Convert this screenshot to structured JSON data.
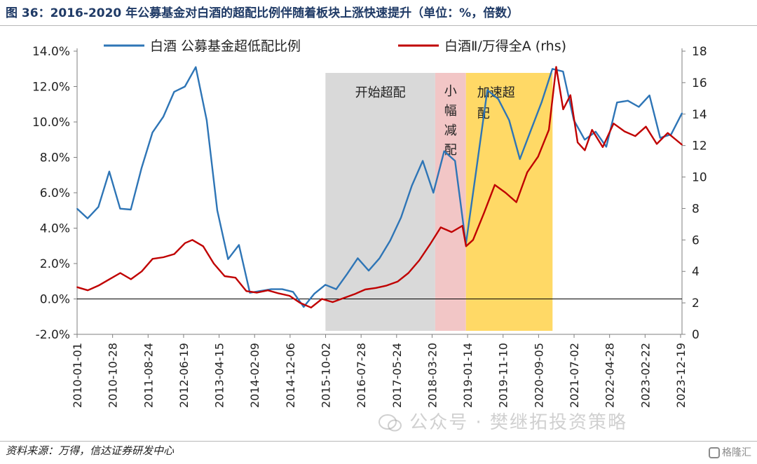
{
  "header": {
    "title": "图 36：2016-2020 年公募基金对白酒的超配比例伴随着板块上涨快速提升（单位：%，倍数）"
  },
  "footer": {
    "source": "资料来源：万得，信达证券研发中心",
    "watermark": "公众号 · 樊继拓投资策略",
    "logo": "格隆汇"
  },
  "chart_data": {
    "type": "line",
    "legend_placement": "top",
    "grid": false,
    "x_tick_labels": [
      "2010-01-01",
      "2010-10-28",
      "2011-08-24",
      "2012-06-19",
      "2013-04-15",
      "2014-02-09",
      "2014-12-06",
      "2015-10-02",
      "2016-07-28",
      "2017-05-24",
      "2018-03-20",
      "2019-01-14",
      "2019-11-10",
      "2020-09-05",
      "2021-07-02",
      "2022-04-28",
      "2023-02-22",
      "2023-12-19"
    ],
    "xlim": [
      "2010-01-01",
      "2023-12-31"
    ],
    "y_left": {
      "ticks": [
        "-2.0%",
        "0.0%",
        "2.0%",
        "4.0%",
        "6.0%",
        "8.0%",
        "10.0%",
        "12.0%",
        "14.0%"
      ],
      "range": [
        -2,
        14
      ]
    },
    "y_right": {
      "ticks": [
        "0",
        "2",
        "4",
        "6",
        "8",
        "10",
        "12",
        "14",
        "16",
        "18"
      ],
      "range": [
        0,
        18
      ]
    },
    "shaded_regions": [
      {
        "label": "开始超配",
        "start": "2015-10-01",
        "end": "2018-04-15",
        "color": "#d9d9d9"
      },
      {
        "label": "小幅减配",
        "start": "2018-04-15",
        "end": "2018-12-31",
        "color": "#f2c6c6"
      },
      {
        "label": "加速超配",
        "start": "2018-12-31",
        "end": "2021-01-01",
        "color": "#ffd966"
      }
    ],
    "series": [
      {
        "name": "白酒 公募基金超低配比例",
        "axis": "left",
        "color": "#2e75b6",
        "points": [
          [
            "2010-01-01",
            5.1
          ],
          [
            "2010-03-31",
            4.55
          ],
          [
            "2010-06-30",
            5.2
          ],
          [
            "2010-09-30",
            7.2
          ],
          [
            "2010-12-31",
            5.1
          ],
          [
            "2011-03-31",
            5.05
          ],
          [
            "2011-06-30",
            7.4
          ],
          [
            "2011-09-30",
            9.4
          ],
          [
            "2011-12-31",
            10.3
          ],
          [
            "2012-03-31",
            11.7
          ],
          [
            "2012-06-30",
            12.0
          ],
          [
            "2012-09-30",
            13.1
          ],
          [
            "2012-12-31",
            10.1
          ],
          [
            "2013-03-31",
            5.0
          ],
          [
            "2013-06-30",
            2.25
          ],
          [
            "2013-09-30",
            3.05
          ],
          [
            "2013-12-31",
            0.35
          ],
          [
            "2014-03-31",
            0.45
          ],
          [
            "2014-06-30",
            0.55
          ],
          [
            "2014-09-30",
            0.55
          ],
          [
            "2014-12-31",
            0.4
          ],
          [
            "2015-03-31",
            -0.45
          ],
          [
            "2015-06-30",
            0.3
          ],
          [
            "2015-09-30",
            0.8
          ],
          [
            "2015-12-31",
            0.55
          ],
          [
            "2016-03-31",
            1.4
          ],
          [
            "2016-06-30",
            2.3
          ],
          [
            "2016-09-30",
            1.6
          ],
          [
            "2016-12-31",
            2.3
          ],
          [
            "2017-03-31",
            3.3
          ],
          [
            "2017-06-30",
            4.6
          ],
          [
            "2017-09-30",
            6.4
          ],
          [
            "2017-12-31",
            7.8
          ],
          [
            "2018-03-31",
            6.0
          ],
          [
            "2018-06-30",
            8.35
          ],
          [
            "2018-09-30",
            7.8
          ],
          [
            "2018-12-31",
            3.1
          ],
          [
            "2019-03-31",
            7.4
          ],
          [
            "2019-06-30",
            11.8
          ],
          [
            "2019-09-30",
            11.3
          ],
          [
            "2019-12-31",
            10.1
          ],
          [
            "2020-03-31",
            7.9
          ],
          [
            "2020-06-30",
            9.5
          ],
          [
            "2020-09-30",
            11.1
          ],
          [
            "2020-12-31",
            13.0
          ],
          [
            "2021-03-31",
            12.85
          ],
          [
            "2021-06-30",
            10.1
          ],
          [
            "2021-09-30",
            9.0
          ],
          [
            "2021-12-31",
            9.45
          ],
          [
            "2022-03-31",
            8.6
          ],
          [
            "2022-06-30",
            11.1
          ],
          [
            "2022-09-30",
            11.2
          ],
          [
            "2022-12-31",
            10.85
          ],
          [
            "2023-03-31",
            11.5
          ],
          [
            "2023-06-30",
            9.1
          ],
          [
            "2023-09-30",
            9.3
          ],
          [
            "2023-12-31",
            10.5
          ]
        ]
      },
      {
        "name": "白酒Ⅱ/万得全A (rhs)",
        "axis": "right",
        "color": "#c00000",
        "points": [
          [
            "2010-01-01",
            3.0
          ],
          [
            "2010-04-01",
            2.8
          ],
          [
            "2010-07-01",
            3.1
          ],
          [
            "2010-10-01",
            3.5
          ],
          [
            "2011-01-01",
            3.9
          ],
          [
            "2011-04-01",
            3.5
          ],
          [
            "2011-07-01",
            4.0
          ],
          [
            "2011-10-01",
            4.8
          ],
          [
            "2012-01-01",
            4.9
          ],
          [
            "2012-04-01",
            5.1
          ],
          [
            "2012-07-01",
            5.8
          ],
          [
            "2012-09-01",
            6.0
          ],
          [
            "2012-12-01",
            5.6
          ],
          [
            "2013-03-01",
            4.5
          ],
          [
            "2013-06-01",
            3.7
          ],
          [
            "2013-09-01",
            3.6
          ],
          [
            "2013-12-01",
            2.75
          ],
          [
            "2014-03-01",
            2.65
          ],
          [
            "2014-06-01",
            2.8
          ],
          [
            "2014-09-01",
            2.6
          ],
          [
            "2014-12-01",
            2.45
          ],
          [
            "2015-03-01",
            2.0
          ],
          [
            "2015-06-01",
            1.7
          ],
          [
            "2015-09-01",
            2.25
          ],
          [
            "2015-12-01",
            2.05
          ],
          [
            "2016-03-01",
            2.3
          ],
          [
            "2016-06-01",
            2.55
          ],
          [
            "2016-09-01",
            2.85
          ],
          [
            "2016-12-01",
            2.95
          ],
          [
            "2017-03-01",
            3.1
          ],
          [
            "2017-06-01",
            3.35
          ],
          [
            "2017-09-01",
            3.9
          ],
          [
            "2017-12-01",
            4.7
          ],
          [
            "2018-03-01",
            5.7
          ],
          [
            "2018-06-01",
            6.8
          ],
          [
            "2018-09-01",
            6.5
          ],
          [
            "2018-12-01",
            6.9
          ],
          [
            "2019-01-01",
            5.6
          ],
          [
            "2019-03-01",
            6.0
          ],
          [
            "2019-06-01",
            7.7
          ],
          [
            "2019-09-01",
            9.5
          ],
          [
            "2019-12-01",
            9.0
          ],
          [
            "2020-03-01",
            8.4
          ],
          [
            "2020-06-01",
            10.3
          ],
          [
            "2020-09-01",
            11.3
          ],
          [
            "2020-12-01",
            13.0
          ],
          [
            "2021-02-01",
            17.0
          ],
          [
            "2021-04-01",
            14.3
          ],
          [
            "2021-06-01",
            15.2
          ],
          [
            "2021-08-01",
            12.2
          ],
          [
            "2021-10-01",
            11.7
          ],
          [
            "2021-12-01",
            13.0
          ],
          [
            "2022-03-01",
            11.9
          ],
          [
            "2022-06-01",
            13.4
          ],
          [
            "2022-09-01",
            12.9
          ],
          [
            "2022-12-01",
            12.6
          ],
          [
            "2023-03-01",
            13.2
          ],
          [
            "2023-06-01",
            12.1
          ],
          [
            "2023-09-01",
            12.8
          ],
          [
            "2023-12-31",
            12.05
          ]
        ]
      }
    ]
  }
}
